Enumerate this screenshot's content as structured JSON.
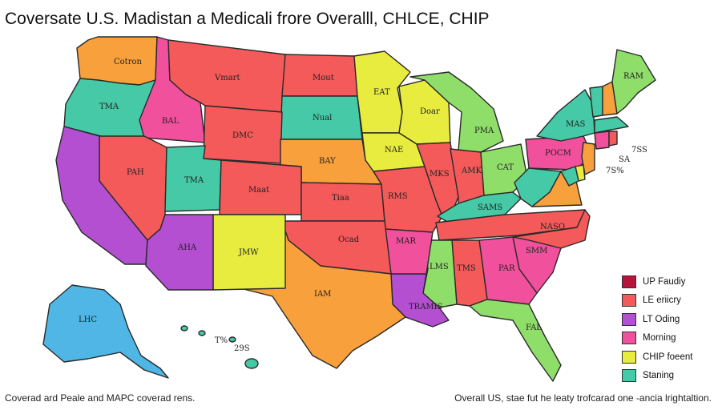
{
  "title": "Coversate U.S. Madistan a Medicali frore Overalll, CHLCE, CHIP",
  "colors": {
    "orange": "#f7a03c",
    "teal": "#45c9a6",
    "red": "#f45a5a",
    "magenta": "#f0509c",
    "purple": "#b44fd2",
    "yellow": "#e8ec3e",
    "green": "#8fde6a",
    "blue": "#4fb6e6",
    "crimson": "#b5143c"
  },
  "states": {
    "wa": "Cotron",
    "or": "TMA",
    "id": "BAL",
    "mt": "Vmart",
    "nd": "Mout",
    "mn": "EAT",
    "wi": "Doar",
    "sd": "Nual",
    "wy": "DMC",
    "ne": "BAY",
    "ia": "NAE",
    "nv": "PAH",
    "ca": "",
    "ut": "TMA",
    "co": "Maat",
    "ks": "Tiaa",
    "mo": "RMS",
    "il": "MKS",
    "in": "AMK",
    "oh": "CAT",
    "mi": "PMA",
    "az": "AHA",
    "nm": "JMW",
    "tx": "IAM",
    "ok": "Ocad",
    "ar": "MAR",
    "la": "TRAMIS",
    "ms": "LMS",
    "al": "TMS",
    "ga": "PAR",
    "fl": "FAL",
    "sc": "SMM",
    "nc": "NASO",
    "tn": "",
    "ky": "SAMS",
    "wv": "",
    "va": "",
    "pa": "POCM",
    "ny": "MAS",
    "me": "RAM",
    "nh": "",
    "vt": "",
    "ak": "LHC"
  },
  "annotations": {
    "ne_pct1": "7SS",
    "ne_pct2": "SA",
    "ne_pct3": "7S%",
    "hi_pct1": "T%",
    "hi_pct2": "29S"
  },
  "legend": [
    {
      "label": "UP Faudiy",
      "color": "#b5143c"
    },
    {
      "label": "LE eriicry",
      "color": "#f45a5a"
    },
    {
      "label": "LT Oding",
      "color": "#b44fd2"
    },
    {
      "label": "Morning",
      "color": "#f0509c"
    },
    {
      "label": "CHIP foeent",
      "color": "#e8ec3e"
    },
    {
      "label": "Staning",
      "color": "#45c9a6"
    }
  ],
  "footer": {
    "left": "Coverad ard Peale and MAPC coverad rens.",
    "right": "Overall US, stae fut he leaty trofcarad one -ancia lrightaltion."
  }
}
